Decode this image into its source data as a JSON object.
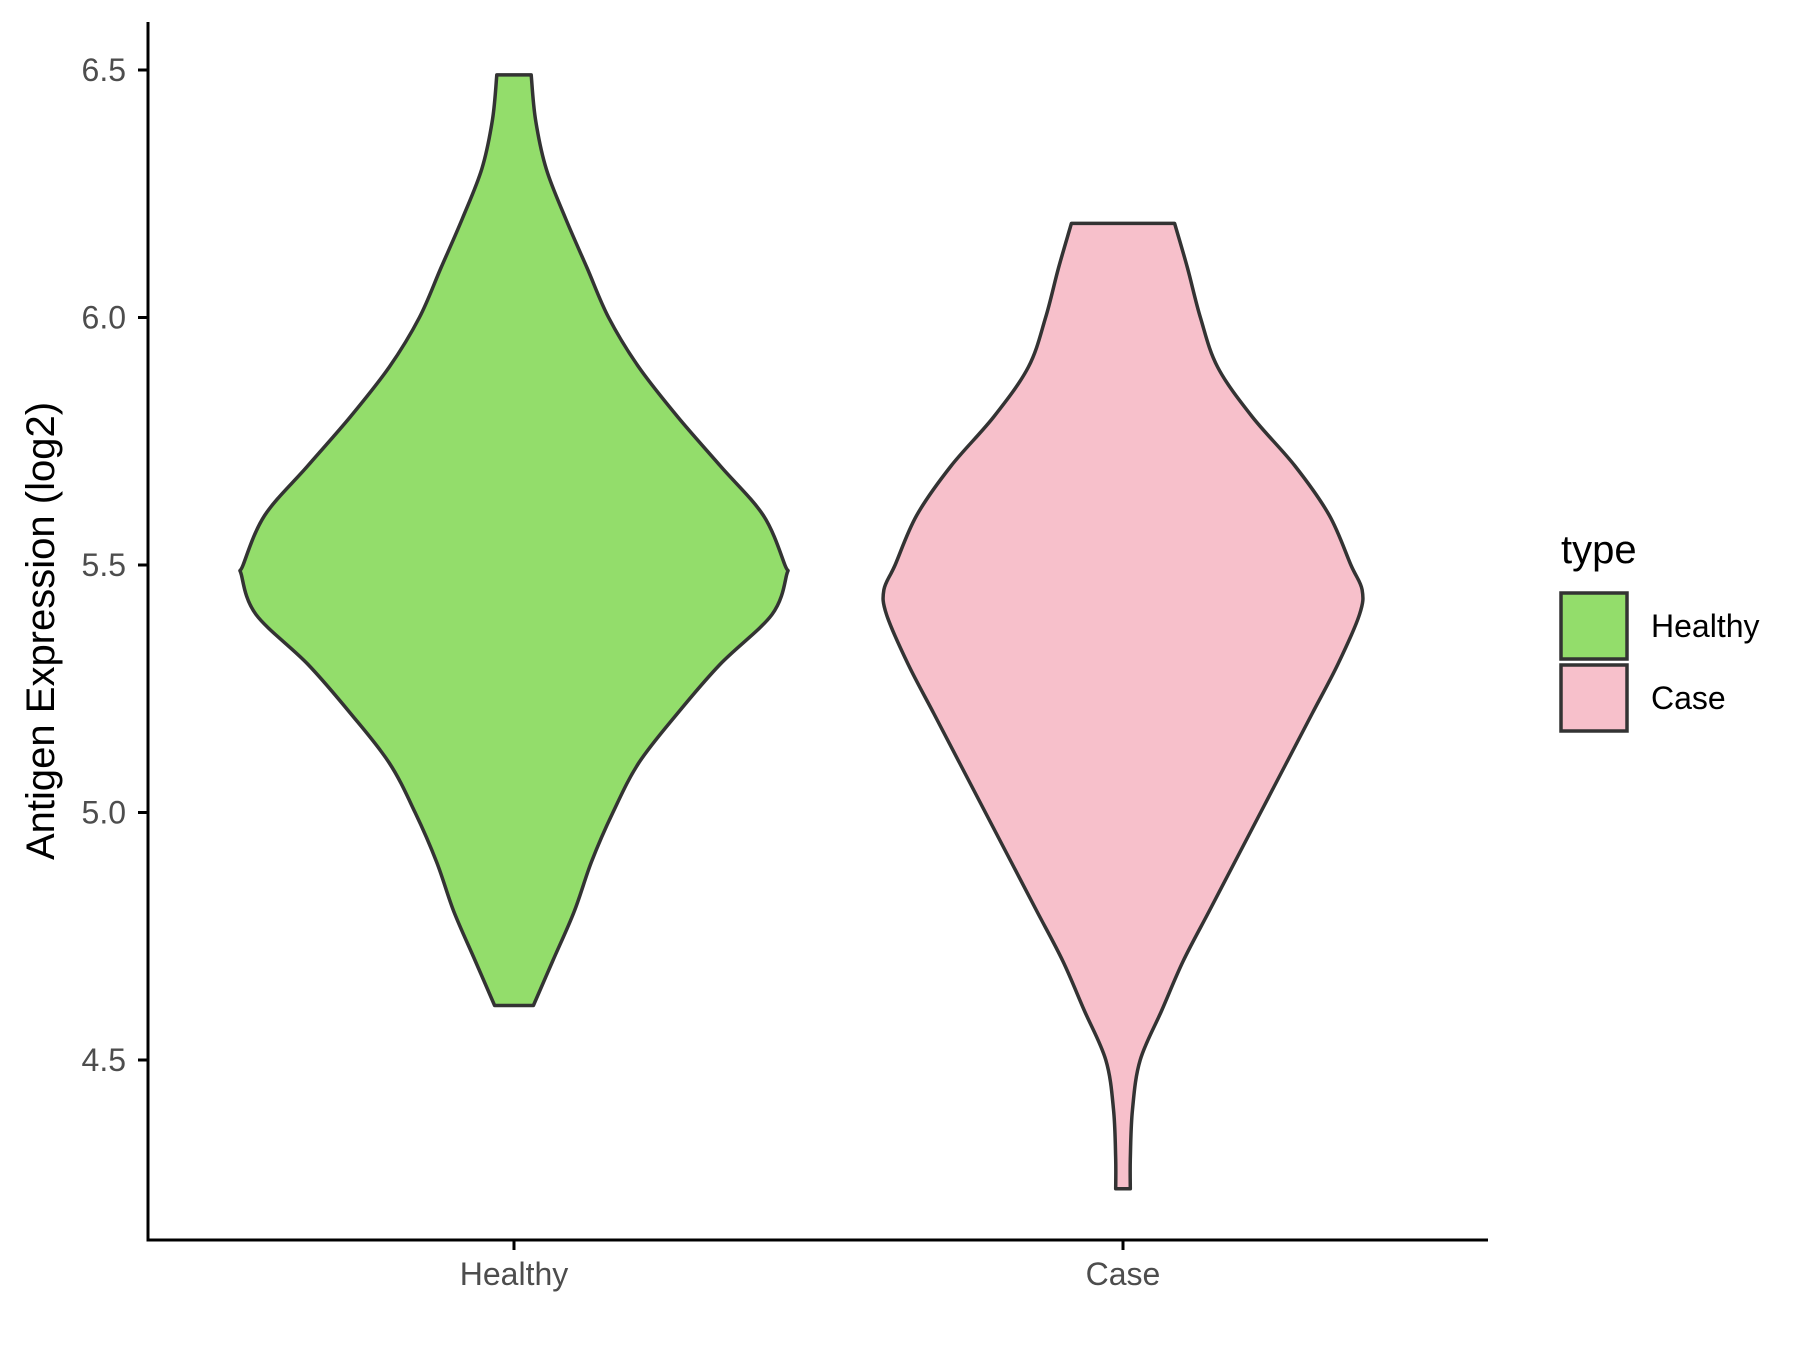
{
  "colors": {
    "healthy": "#93dd6b",
    "case": "#f7c0cb",
    "outline": "#333333",
    "axis": "#000000",
    "tick_text": "#4d4d4d"
  },
  "chart_data": {
    "type": "violin",
    "ylabel": "Antigen Expression (log2)",
    "xlabel": "",
    "ylim": [
      4.13,
      6.6
    ],
    "yticks": [
      "4.5",
      "5.0",
      "5.5",
      "6.0",
      "6.5"
    ],
    "categories": [
      "Healthy",
      "Case"
    ],
    "legend": {
      "title": "type",
      "position": "right",
      "entries": [
        "Healthy",
        "Case"
      ]
    },
    "series": [
      {
        "name": "Healthy",
        "color_key": "healthy",
        "min": 4.61,
        "max": 6.49,
        "profile": [
          [
            6.49,
            0.04
          ],
          [
            6.4,
            0.05
          ],
          [
            6.3,
            0.075
          ],
          [
            6.2,
            0.12
          ],
          [
            6.1,
            0.17
          ],
          [
            6.0,
            0.22
          ],
          [
            5.9,
            0.29
          ],
          [
            5.8,
            0.38
          ],
          [
            5.7,
            0.48
          ],
          [
            5.6,
            0.58
          ],
          [
            5.5,
            0.63
          ],
          [
            5.48,
            0.634
          ],
          [
            5.4,
            0.6
          ],
          [
            5.3,
            0.48
          ],
          [
            5.2,
            0.38
          ],
          [
            5.1,
            0.29
          ],
          [
            5.0,
            0.23
          ],
          [
            4.9,
            0.18
          ],
          [
            4.8,
            0.14
          ],
          [
            4.7,
            0.09
          ],
          [
            4.61,
            0.045
          ]
        ]
      },
      {
        "name": "Case",
        "color_key": "case",
        "min": 4.24,
        "max": 6.19,
        "profile": [
          [
            6.19,
            0.12
          ],
          [
            6.1,
            0.15
          ],
          [
            6.0,
            0.18
          ],
          [
            5.9,
            0.22
          ],
          [
            5.8,
            0.3
          ],
          [
            5.7,
            0.4
          ],
          [
            5.6,
            0.48
          ],
          [
            5.5,
            0.53
          ],
          [
            5.45,
            0.556
          ],
          [
            5.4,
            0.55
          ],
          [
            5.3,
            0.5
          ],
          [
            5.2,
            0.44
          ],
          [
            5.1,
            0.38
          ],
          [
            5.0,
            0.32
          ],
          [
            4.9,
            0.26
          ],
          [
            4.8,
            0.2
          ],
          [
            4.7,
            0.14
          ],
          [
            4.6,
            0.09
          ],
          [
            4.5,
            0.04
          ],
          [
            4.4,
            0.022
          ],
          [
            4.3,
            0.017
          ],
          [
            4.24,
            0.017
          ]
        ]
      }
    ]
  }
}
